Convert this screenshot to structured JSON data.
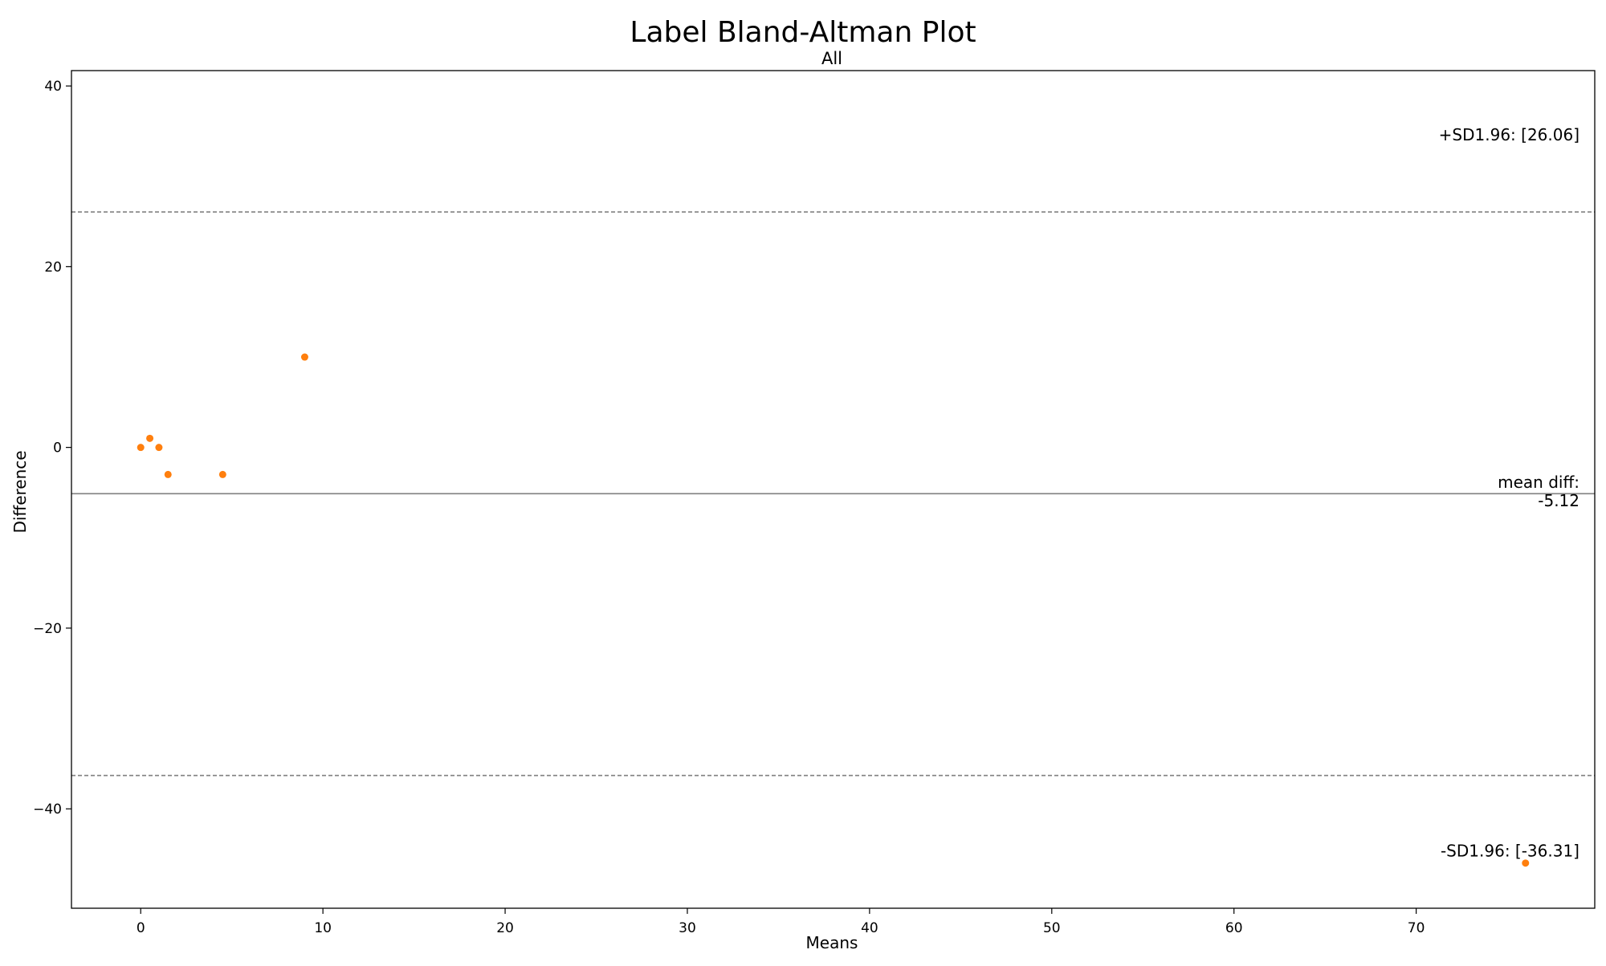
{
  "chart_data": {
    "type": "scatter",
    "title": "Label Bland-Altman Plot",
    "subtitle": "All",
    "xlabel": "Means",
    "ylabel": "Difference",
    "xlim": [
      -3.8,
      79.8
    ],
    "ylim": [
      -51.0,
      41.7
    ],
    "xticks": [
      0,
      10,
      20,
      30,
      40,
      50,
      60,
      70
    ],
    "yticks": [
      -40,
      -20,
      0,
      20,
      40
    ],
    "grid": false,
    "point_color": "#ff7f0e",
    "line_color": "#808080",
    "points": [
      {
        "x": 0,
        "y": 0
      },
      {
        "x": 0.5,
        "y": 1
      },
      {
        "x": 1,
        "y": 0
      },
      {
        "x": 1.5,
        "y": -3
      },
      {
        "x": 4.5,
        "y": -3
      },
      {
        "x": 9,
        "y": 10
      },
      {
        "x": 76,
        "y": -46
      }
    ],
    "reference_lines": [
      {
        "name": "mean-diff",
        "y": -5.12,
        "style": "solid",
        "label_lines": [
          "mean diff:",
          "-5.12"
        ]
      },
      {
        "name": "upper-limit",
        "y": 26.06,
        "style": "dashed",
        "label_lines": [
          "+SD1.96: [26.06]"
        ]
      },
      {
        "name": "lower-limit",
        "y": -36.31,
        "style": "dashed",
        "label_lines": [
          "-SD1.96: [-36.31]"
        ]
      }
    ]
  }
}
